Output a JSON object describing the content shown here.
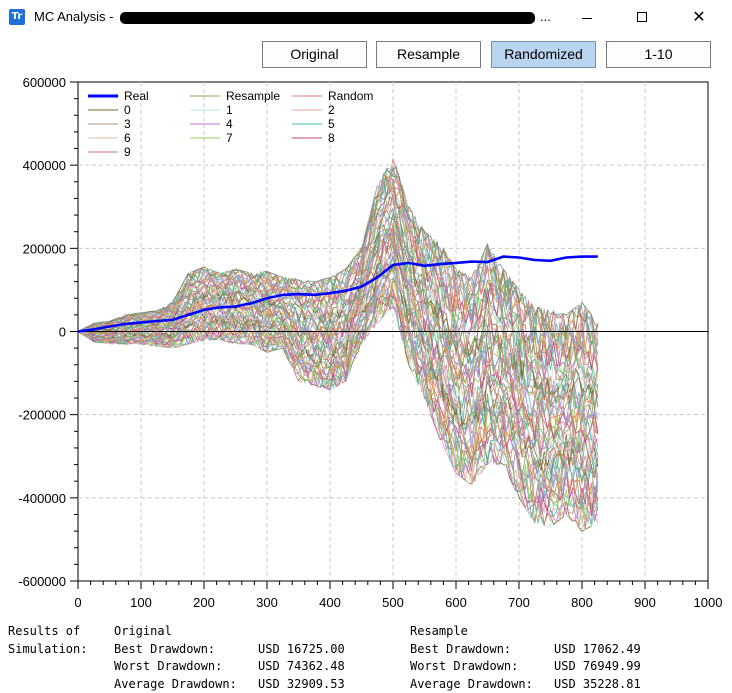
{
  "window": {
    "title": "MC Analysis - ",
    "title_ellipsis": "...",
    "app_icon_text": "Tr",
    "minimize_glyph": "",
    "maximize_glyph": "",
    "close_glyph": "✕"
  },
  "toolbar": {
    "buttons": [
      {
        "label": "Original",
        "active": false
      },
      {
        "label": "Resample",
        "active": false
      },
      {
        "label": "Randomized",
        "active": true
      },
      {
        "label": "1-10",
        "active": false
      }
    ]
  },
  "chart_data": {
    "type": "line",
    "xlim": [
      0,
      1000
    ],
    "ylim": [
      -600000,
      600000
    ],
    "x_ticks": [
      0,
      100,
      200,
      300,
      400,
      500,
      600,
      700,
      800,
      900,
      1000
    ],
    "y_ticks": [
      600000,
      400000,
      200000,
      0,
      -200000,
      -400000,
      -600000
    ],
    "grid": true,
    "legend_position": "top-left",
    "legend": [
      {
        "name": "Real",
        "color": "#0000ff"
      },
      {
        "name": "Resample",
        "color": "#a0a04a"
      },
      {
        "name": "Random",
        "color": "#e07a7a"
      },
      {
        "name": "0",
        "color": "#7a6a2a"
      },
      {
        "name": "1",
        "color": "#b4e6e6"
      },
      {
        "name": "2",
        "color": "#f0a0a0"
      },
      {
        "name": "3",
        "color": "#b09070"
      },
      {
        "name": "4",
        "color": "#c070d0"
      },
      {
        "name": "5",
        "color": "#40c0a0"
      },
      {
        "name": "6",
        "color": "#e0c0a0"
      },
      {
        "name": "7",
        "color": "#90d060"
      },
      {
        "name": "8",
        "color": "#c04080"
      },
      {
        "name": "9",
        "color": "#d07090"
      }
    ],
    "series": [
      {
        "name": "Real",
        "color": "#0000ff",
        "x": [
          0,
          25,
          50,
          75,
          100,
          125,
          150,
          175,
          200,
          225,
          250,
          275,
          300,
          325,
          350,
          375,
          400,
          425,
          450,
          475,
          500,
          525,
          550,
          575,
          600,
          625,
          650,
          675,
          700,
          725,
          750,
          775,
          800,
          825
        ],
        "y": [
          0,
          5000,
          12000,
          18000,
          22000,
          25000,
          28000,
          40000,
          52000,
          58000,
          60000,
          68000,
          80000,
          88000,
          90000,
          88000,
          92000,
          98000,
          108000,
          130000,
          160000,
          165000,
          158000,
          162000,
          165000,
          168000,
          167000,
          180000,
          178000,
          172000,
          170000,
          178000,
          180000,
          180000
        ]
      }
    ],
    "envelope": {
      "x": [
        0,
        25,
        50,
        75,
        100,
        125,
        150,
        175,
        200,
        225,
        250,
        275,
        300,
        325,
        350,
        375,
        400,
        425,
        450,
        475,
        500,
        525,
        550,
        575,
        600,
        625,
        650,
        675,
        700,
        725,
        750,
        775,
        800,
        825
      ],
      "upper": [
        0,
        20000,
        25000,
        40000,
        45000,
        50000,
        70000,
        140000,
        155000,
        140000,
        150000,
        140000,
        145000,
        130000,
        125000,
        120000,
        130000,
        150000,
        200000,
        350000,
        420000,
        300000,
        240000,
        210000,
        150000,
        130000,
        210000,
        150000,
        100000,
        60000,
        50000,
        40000,
        70000,
        20000
      ],
      "lower": [
        0,
        -25000,
        -30000,
        -30000,
        -30000,
        -35000,
        -40000,
        -30000,
        -20000,
        -20000,
        -30000,
        -30000,
        -50000,
        -40000,
        -120000,
        -130000,
        -140000,
        -120000,
        -30000,
        20000,
        60000,
        -80000,
        -160000,
        -260000,
        -340000,
        -370000,
        -320000,
        -320000,
        -400000,
        -460000,
        -470000,
        -440000,
        -480000,
        -460000
      ]
    },
    "simulation_count": 60
  },
  "results": {
    "label_line1": "Results of",
    "label_line2": "Simulation:",
    "original": {
      "heading": "Original",
      "best_label": "Best Drawdown:",
      "best_value": "USD 16725.00",
      "worst_label": "Worst Drawdown:",
      "worst_value": "USD 74362.48",
      "avg_label": "Average Drawdown:",
      "avg_value": "USD 32909.53"
    },
    "resample": {
      "heading": "Resample",
      "best_label": "Best Drawdown:",
      "best_value": "USD 17062.49",
      "worst_label": "Worst Drawdown:",
      "worst_value": "USD 76949.99",
      "avg_label": "Average Drawdown:",
      "avg_value": "USD 35228.81"
    }
  }
}
